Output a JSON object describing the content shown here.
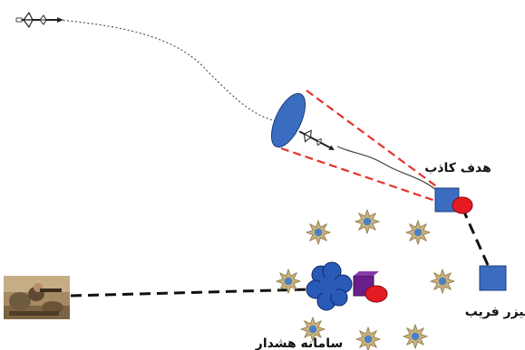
{
  "labels": {
    "decoy_target": "هدف کاذب",
    "deceptive_laser": "لیزر فریب",
    "warning_system": "سامانه هشدار"
  },
  "icons": {
    "missile": "missile-icon",
    "seeker_lens": "lens-ellipse-icon",
    "decoy": "decoy-box-icon",
    "laser_emitter": "laser-emitter-icon",
    "warning_sensor": "warning-cloud-icon",
    "soldier": "soldier-photo-icon",
    "flare": "star-burst-icon"
  },
  "colors": {
    "box_blue": "#3a6cc0",
    "laser_red": "#e51b23",
    "cone_red": "#e5332a",
    "sensor_blue": "#2a5ab8",
    "sensor_purple": "#6a1f8a",
    "star_tan": "#c9b27a",
    "star_core": "#4a7fc6",
    "dash_black": "#111111"
  }
}
